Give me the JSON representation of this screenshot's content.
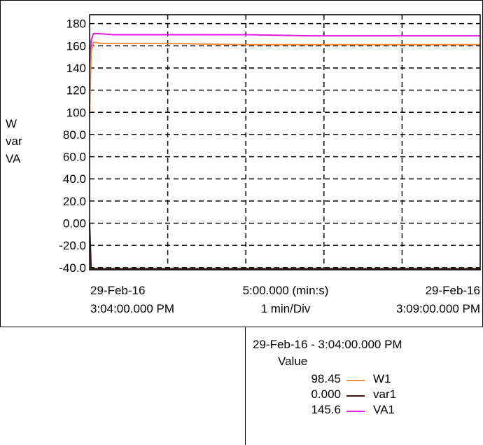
{
  "chart_data": {
    "type": "line",
    "ylabel": [
      "W",
      "var",
      "VA"
    ],
    "yticks": [
      "180",
      "160",
      "140",
      "120",
      "100",
      "80.0",
      "60.0",
      "40.0",
      "20.0",
      "0.00",
      "-20.0",
      "-40.0"
    ],
    "ylim": [
      -42,
      188
    ],
    "xlim_minutes": [
      0,
      5
    ],
    "x_gridlines_minutes": [
      1,
      2,
      3,
      4
    ],
    "grid": true,
    "x_labels": {
      "left_date": "29-Feb-16",
      "left_time": "3:04:00.000 PM",
      "center_span": "5:00.000 (min:s)",
      "center_div": "1 min/Div",
      "right_date": "29-Feb-16",
      "right_time": "3:09:00.000 PM"
    },
    "series": [
      {
        "name": "W1",
        "color": "#f28c3c",
        "x": [
          0,
          0.02,
          0.05,
          0.08,
          0.15,
          0.3,
          1.0,
          2.0,
          2.5,
          3.0,
          4.0,
          5.0
        ],
        "y": [
          98.45,
          155,
          163,
          163,
          162,
          162,
          162,
          161,
          161,
          161,
          161,
          161
        ]
      },
      {
        "name": "var1",
        "color": "#3d1515",
        "x": [
          0,
          0.01,
          0.02,
          0.05,
          1.0,
          2.0,
          3.0,
          4.0,
          5.0
        ],
        "y": [
          0.0,
          -20,
          -41,
          -41,
          -41,
          -41,
          -41,
          -41,
          -41
        ]
      },
      {
        "name": "VA1",
        "color": "#e01ee0",
        "x": [
          0,
          0.02,
          0.05,
          0.1,
          0.3,
          1.0,
          2.0,
          2.8,
          3.0,
          4.0,
          5.0
        ],
        "y": [
          145.6,
          165,
          171,
          171,
          170,
          170,
          170,
          169,
          169,
          169,
          169
        ]
      }
    ]
  },
  "legend": {
    "timestamp": "29-Feb-16 - 3:04:00.000 PM",
    "value_header": "Value",
    "entries": [
      {
        "value": "98.45",
        "name": "W1",
        "color": "#f28c3c"
      },
      {
        "value": "0.000",
        "name": "var1",
        "color": "#3d1515"
      },
      {
        "value": "145.6",
        "name": "VA1",
        "color": "#e01ee0"
      }
    ]
  }
}
